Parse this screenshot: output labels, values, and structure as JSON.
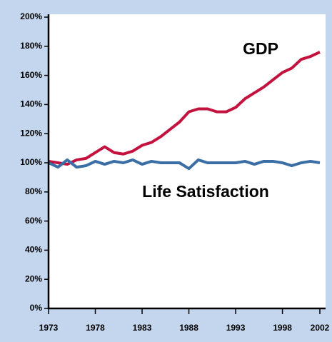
{
  "chart_data": {
    "type": "line",
    "x": [
      1973,
      1974,
      1975,
      1976,
      1977,
      1978,
      1979,
      1980,
      1981,
      1982,
      1983,
      1984,
      1985,
      1986,
      1987,
      1988,
      1989,
      1990,
      1991,
      1992,
      1993,
      1994,
      1995,
      1996,
      1997,
      1998,
      1999,
      2000,
      2001,
      2002
    ],
    "series": [
      {
        "name": "GDP",
        "color": "#c2123d",
        "values": [
          101,
          100,
          99,
          102,
          103,
          107,
          111,
          107,
          106,
          108,
          112,
          114,
          118,
          123,
          128,
          135,
          137,
          137,
          135,
          135,
          138,
          144,
          148,
          152,
          157,
          162,
          165,
          171,
          173,
          176
        ]
      },
      {
        "name": "Life Satisfaction",
        "color": "#3a6ea5",
        "values": [
          100,
          97,
          102,
          97,
          98,
          101,
          99,
          101,
          100,
          102,
          99,
          101,
          100,
          100,
          100,
          96,
          102,
          100,
          100,
          100,
          100,
          101,
          99,
          101,
          101,
          100,
          98,
          100,
          101,
          100
        ]
      }
    ],
    "xlim": [
      1973,
      2002
    ],
    "xticks": [
      1973,
      1978,
      1983,
      1988,
      1993,
      1998,
      2002
    ],
    "ylim": [
      0,
      200
    ],
    "yticks": [
      {
        "value": 0,
        "label": "0%"
      },
      {
        "value": 20,
        "label": "20%"
      },
      {
        "value": 40,
        "label": "40%"
      },
      {
        "value": 60,
        "label": "60%"
      },
      {
        "value": 80,
        "label": "80%"
      },
      {
        "value": 100,
        "label": "100%"
      },
      {
        "value": 120,
        "label": "120%"
      },
      {
        "value": 140,
        "label": "140%"
      },
      {
        "value": 160,
        "label": "160%"
      },
      {
        "value": 180,
        "label": "180%"
      },
      {
        "value": 200,
        "label": "200%"
      }
    ]
  }
}
